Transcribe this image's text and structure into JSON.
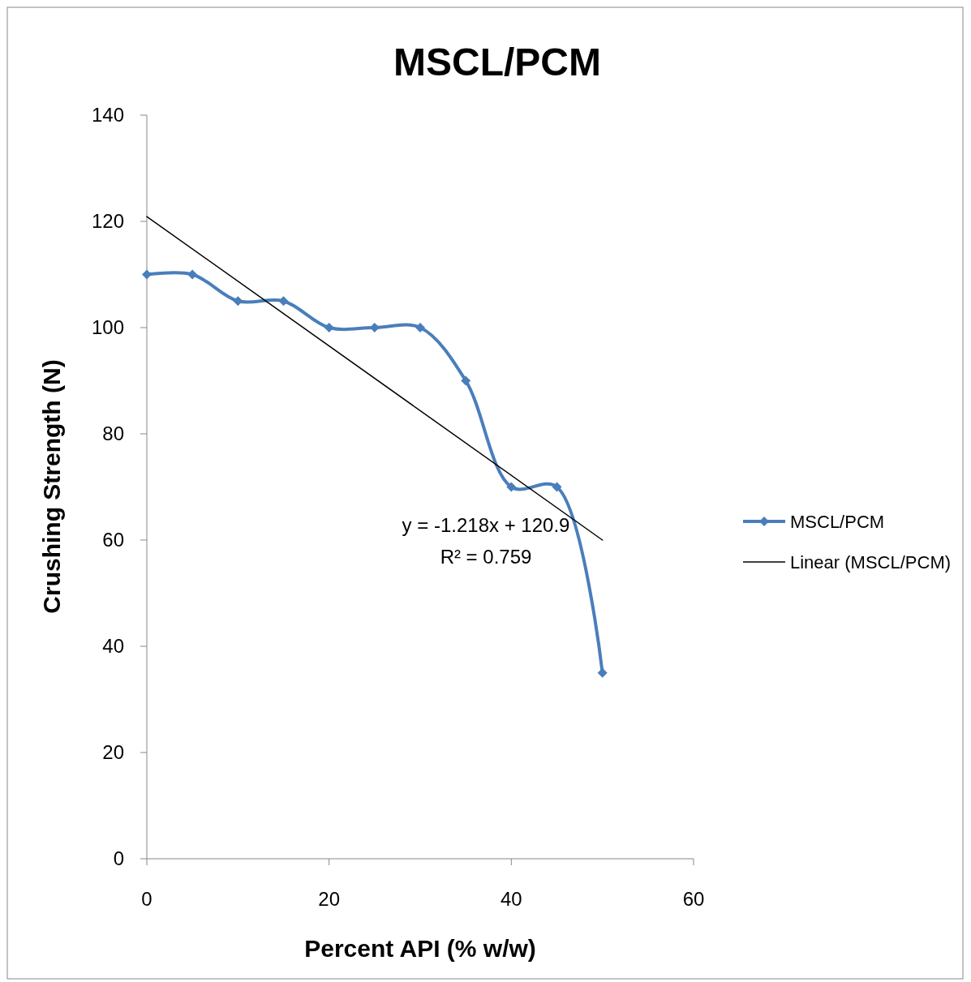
{
  "chart_data": {
    "type": "line",
    "title": "MSCL/PCM",
    "xlabel": "Percent API (% w/w)",
    "ylabel": "Crushing Strength (N)",
    "x": [
      0,
      5,
      10,
      15,
      20,
      25,
      30,
      35,
      40,
      45,
      50
    ],
    "series": [
      {
        "name": "MSCL/PCM",
        "color": "#4a7ebb",
        "values": [
          110,
          110,
          105,
          105,
          100,
          100,
          100,
          90,
          70,
          70,
          35
        ],
        "marker": "diamond"
      },
      {
        "name": "Linear (MSCL/PCM)",
        "color": "#000000",
        "type": "line",
        "x": [
          0,
          50
        ],
        "values": [
          120.9,
          60.0
        ],
        "marker": "none"
      }
    ],
    "xlim": [
      0,
      60
    ],
    "xticks": [
      0,
      20,
      40,
      60
    ],
    "ylim": [
      0,
      140
    ],
    "yticks": [
      0,
      20,
      40,
      60,
      80,
      100,
      120,
      140
    ],
    "grid": false,
    "legend": "right",
    "annotations": [
      "y = -1.218x + 120.9",
      "R² = 0.759"
    ]
  }
}
